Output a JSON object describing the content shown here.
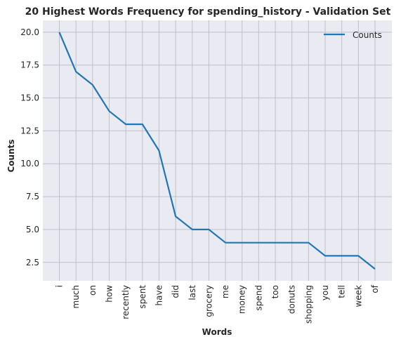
{
  "chart_data": {
    "type": "line",
    "title": "20 Highest Words Frequency for spending_history - Validation Set",
    "xlabel": "Words",
    "ylabel": "Counts",
    "categories": [
      "i",
      "much",
      "on",
      "how",
      "recently",
      "spent",
      "have",
      "did",
      "last",
      "grocery",
      "me",
      "money",
      "spend",
      "too",
      "donuts",
      "shopping",
      "you",
      "tell",
      "week",
      "of"
    ],
    "series": [
      {
        "name": "Counts",
        "color": "#1f77b4",
        "values": [
          20,
          17,
          16,
          14,
          13,
          13,
          11,
          6,
          5,
          5,
          4,
          4,
          4,
          4,
          4,
          4,
          3,
          3,
          3,
          2
        ]
      }
    ],
    "ylim": [
      1.1,
      20.9
    ],
    "yticks": [
      "2.5",
      "5.0",
      "7.5",
      "10.0",
      "12.5",
      "15.0",
      "17.5",
      "20.0"
    ],
    "grid": true,
    "legend_position": "top-right",
    "colors": {
      "plot_bg": "#eaeaf2",
      "grid": "#c0c0c8"
    }
  }
}
